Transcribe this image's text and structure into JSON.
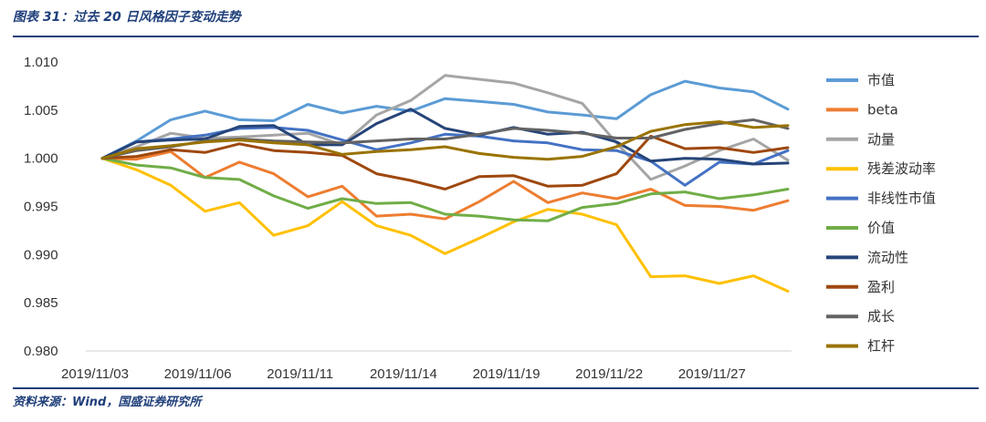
{
  "header": {
    "title": "图表 31：过去 20 日风格因子变动走势"
  },
  "footer": {
    "source": "资料来源：Wind，国盛证券研究所"
  },
  "chart_data": {
    "type": "line",
    "title": "",
    "xlabel": "",
    "ylabel": "",
    "ylim": [
      0.98,
      1.01
    ],
    "yticks": [
      "0.980",
      "0.985",
      "0.990",
      "0.995",
      "1.000",
      "1.005",
      "1.010"
    ],
    "x_tick_labels": [
      "2019/11/03",
      "2019/11/06",
      "2019/11/11",
      "2019/11/14",
      "2019/11/19",
      "2019/11/22",
      "2019/11/27"
    ],
    "x_tick_index": [
      0,
      3,
      6,
      9,
      12,
      15,
      18
    ],
    "legend_position": "right",
    "grid": false,
    "series": [
      {
        "name": "市值",
        "color": "#5b9bd5",
        "values": [
          1.0,
          1.0018,
          1.004,
          1.0049,
          1.004,
          1.0039,
          1.0056,
          1.0047,
          1.0054,
          1.0049,
          1.0062,
          1.0059,
          1.0056,
          1.0048,
          1.0045,
          1.0041,
          1.0066,
          1.008,
          1.0073,
          1.0069,
          1.0051
        ]
      },
      {
        "name": "beta",
        "color": "#ed7d31",
        "values": [
          1.0,
          0.9999,
          1.0007,
          0.998,
          0.9996,
          0.9984,
          0.996,
          0.9971,
          0.994,
          0.9942,
          0.9937,
          0.9955,
          0.9976,
          0.9954,
          0.9964,
          0.9958,
          0.9968,
          0.9951,
          0.995,
          0.9946,
          0.9956
        ]
      },
      {
        "name": "动量",
        "color": "#a5a5a5",
        "values": [
          1.0,
          1.0012,
          1.0026,
          1.0021,
          1.0022,
          1.0024,
          1.0026,
          1.0014,
          1.0045,
          1.006,
          1.0086,
          1.0082,
          1.0078,
          1.0068,
          1.0057,
          1.0016,
          0.9978,
          0.9992,
          1.0008,
          1.002,
          0.9998
        ]
      },
      {
        "name": "残差波动率",
        "color": "#ffc000",
        "values": [
          1.0,
          0.9988,
          0.9972,
          0.9945,
          0.9954,
          0.992,
          0.993,
          0.9955,
          0.993,
          0.992,
          0.9901,
          0.9917,
          0.9934,
          0.9947,
          0.9942,
          0.9931,
          0.9877,
          0.9878,
          0.987,
          0.9878,
          0.9862
        ]
      },
      {
        "name": "非线性市值",
        "color": "#4472c4",
        "values": [
          1.0,
          1.0017,
          1.002,
          1.0024,
          1.0031,
          1.0032,
          1.0029,
          1.0019,
          1.0009,
          1.0016,
          1.0025,
          1.0023,
          1.0018,
          1.0016,
          1.0009,
          1.0008,
          0.9997,
          0.9972,
          0.9996,
          0.9994,
          1.0008
        ]
      },
      {
        "name": "价值",
        "color": "#70ad47",
        "values": [
          1.0,
          0.9993,
          0.999,
          0.998,
          0.9978,
          0.9961,
          0.9948,
          0.9958,
          0.9953,
          0.9954,
          0.9942,
          0.994,
          0.9936,
          0.9935,
          0.9949,
          0.9953,
          0.9963,
          0.9965,
          0.9958,
          0.9962,
          0.9968
        ]
      },
      {
        "name": "流动性",
        "color": "#264478",
        "values": [
          1.0,
          1.0017,
          1.0019,
          1.002,
          1.0033,
          1.0034,
          1.0014,
          1.0014,
          1.0036,
          1.0051,
          1.0031,
          1.0024,
          1.0032,
          1.0025,
          1.0027,
          1.0017,
          0.9997,
          1.0,
          0.9999,
          0.9994,
          0.9995
        ]
      },
      {
        "name": "盈利",
        "color": "#9e480e",
        "values": [
          1.0,
          1.0002,
          1.0009,
          1.0006,
          1.0015,
          1.0008,
          1.0006,
          1.0003,
          0.9984,
          0.9977,
          0.9968,
          0.9981,
          0.9982,
          0.9971,
          0.9972,
          0.9984,
          1.0023,
          1.001,
          1.0011,
          1.0006,
          1.0011
        ]
      },
      {
        "name": "成长",
        "color": "#636363",
        "values": [
          1.0,
          1.0008,
          1.0012,
          1.0018,
          1.002,
          1.0018,
          1.0017,
          1.0016,
          1.0018,
          1.002,
          1.002,
          1.0025,
          1.0031,
          1.0029,
          1.0026,
          1.0021,
          1.0021,
          1.003,
          1.0036,
          1.004,
          1.0031
        ]
      },
      {
        "name": "杠杆",
        "color": "#997300",
        "values": [
          1.0,
          1.001,
          1.0013,
          1.0017,
          1.0019,
          1.0016,
          1.0014,
          1.0004,
          1.0007,
          1.0009,
          1.0012,
          1.0005,
          1.0001,
          0.9999,
          1.0002,
          1.0012,
          1.0028,
          1.0035,
          1.0038,
          1.0032,
          1.0034
        ]
      }
    ]
  }
}
